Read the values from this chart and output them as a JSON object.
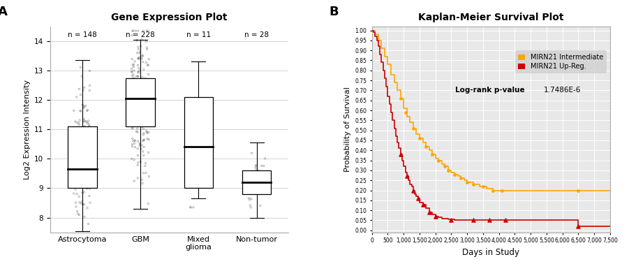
{
  "title_A": "Gene Expression Plot",
  "title_B": "Kaplan-Meier Survival Plot",
  "label_A": "A",
  "label_B": "B",
  "ylabel_A": "Log2 Expression Intensity",
  "xlabel_B": "Days in Study",
  "ylabel_B": "Probability of Survival",
  "categories": [
    "Astrocytoma",
    "GBM",
    "Mixed\nglioma",
    "Non-tumor"
  ],
  "n_labels": [
    "n = 148",
    "n = 228",
    "n = 11",
    "n = 28"
  ],
  "box_stats": [
    {
      "q1": 9.0,
      "median": 9.65,
      "q3": 11.1,
      "whislo": 7.55,
      "whishi": 13.35
    },
    {
      "q1": 11.1,
      "median": 12.05,
      "q3": 12.75,
      "whislo": 8.3,
      "whishi": 14.05
    },
    {
      "q1": 9.0,
      "median": 10.4,
      "q3": 12.1,
      "whislo": 8.65,
      "whishi": 13.3
    },
    {
      "q1": 8.8,
      "median": 9.2,
      "q3": 9.6,
      "whislo": 8.0,
      "whishi": 10.55
    }
  ],
  "n_samples": [
    148,
    228,
    11,
    28
  ],
  "ylim_A": [
    7.5,
    14.5
  ],
  "yticks_A": [
    8,
    9,
    10,
    11,
    12,
    13,
    14
  ],
  "km_intermediate_x": [
    0,
    100,
    200,
    300,
    400,
    500,
    600,
    700,
    800,
    900,
    1000,
    1100,
    1200,
    1300,
    1400,
    1500,
    1600,
    1700,
    1800,
    1900,
    2000,
    2100,
    2200,
    2300,
    2400,
    2500,
    2600,
    2700,
    2800,
    2900,
    3000,
    3100,
    3200,
    3300,
    3400,
    3500,
    3600,
    3700,
    3800,
    3900,
    4000,
    4100,
    4200,
    4300,
    4400,
    4500,
    5000,
    5500,
    6000,
    6500,
    7000,
    7500
  ],
  "km_intermediate_y": [
    1.0,
    0.98,
    0.95,
    0.91,
    0.87,
    0.83,
    0.78,
    0.74,
    0.7,
    0.66,
    0.61,
    0.57,
    0.54,
    0.51,
    0.48,
    0.46,
    0.44,
    0.42,
    0.4,
    0.38,
    0.36,
    0.35,
    0.33,
    0.32,
    0.3,
    0.29,
    0.28,
    0.27,
    0.26,
    0.25,
    0.24,
    0.24,
    0.23,
    0.23,
    0.22,
    0.22,
    0.21,
    0.21,
    0.2,
    0.2,
    0.2,
    0.2,
    0.2,
    0.2,
    0.2,
    0.2,
    0.2,
    0.2,
    0.2,
    0.2,
    0.2,
    0.2
  ],
  "km_upreg_x": [
    0,
    50,
    100,
    150,
    200,
    250,
    300,
    350,
    400,
    450,
    500,
    550,
    600,
    650,
    700,
    750,
    800,
    850,
    900,
    950,
    1000,
    1050,
    1100,
    1150,
    1200,
    1250,
    1300,
    1350,
    1400,
    1450,
    1500,
    1600,
    1700,
    1800,
    1900,
    2000,
    2100,
    2200,
    2400,
    2600,
    3000,
    3500,
    4000,
    4500,
    5000,
    6000,
    6500,
    7000,
    7500
  ],
  "km_upreg_y": [
    1.0,
    0.99,
    0.97,
    0.95,
    0.92,
    0.88,
    0.84,
    0.8,
    0.76,
    0.72,
    0.67,
    0.63,
    0.59,
    0.55,
    0.51,
    0.47,
    0.44,
    0.41,
    0.38,
    0.35,
    0.32,
    0.29,
    0.27,
    0.25,
    0.23,
    0.22,
    0.2,
    0.18,
    0.17,
    0.16,
    0.14,
    0.13,
    0.11,
    0.09,
    0.08,
    0.07,
    0.065,
    0.06,
    0.055,
    0.05,
    0.05,
    0.05,
    0.05,
    0.05,
    0.05,
    0.05,
    0.02,
    0.02,
    0.02
  ],
  "km_int_censor_x": [
    900,
    1050,
    1300,
    1500,
    1700,
    1900,
    2100,
    2300,
    2400,
    2600,
    2800,
    3000,
    3200,
    3500,
    3800,
    4100,
    6500
  ],
  "km_int_censor_y": [
    0.66,
    0.59,
    0.51,
    0.46,
    0.42,
    0.38,
    0.35,
    0.32,
    0.3,
    0.28,
    0.26,
    0.24,
    0.23,
    0.22,
    0.2,
    0.2,
    0.2
  ],
  "km_up_censor_x": [
    900,
    1100,
    1300,
    1450,
    1600,
    1800,
    2000,
    2500,
    3200,
    3700,
    4200,
    6500
  ],
  "km_up_censor_y": [
    0.38,
    0.27,
    0.2,
    0.16,
    0.13,
    0.09,
    0.07,
    0.05,
    0.05,
    0.05,
    0.05,
    0.02
  ],
  "km_int_color": "#FFA500",
  "km_up_color": "#CC0000",
  "km_xlim": [
    0,
    7500
  ],
  "km_ylim": [
    -0.01,
    1.02
  ],
  "km_xticks": [
    0,
    500,
    1000,
    1500,
    2000,
    2500,
    3000,
    3500,
    4000,
    4500,
    5000,
    5500,
    6000,
    6500,
    7000,
    7500
  ],
  "km_yticks": [
    0.0,
    0.05,
    0.1,
    0.15,
    0.2,
    0.25,
    0.3,
    0.35,
    0.4,
    0.45,
    0.5,
    0.55,
    0.6,
    0.65,
    0.7,
    0.75,
    0.8,
    0.85,
    0.9,
    0.95,
    1.0
  ],
  "logrank_label": "Log-rank p-value",
  "logrank_pvalue": "1.7486E-6",
  "bg_color": "#ffffff",
  "plot_bg_A": "#ffffff",
  "plot_bg_B": "#e8e8e8",
  "grid_color": "#cccccc"
}
